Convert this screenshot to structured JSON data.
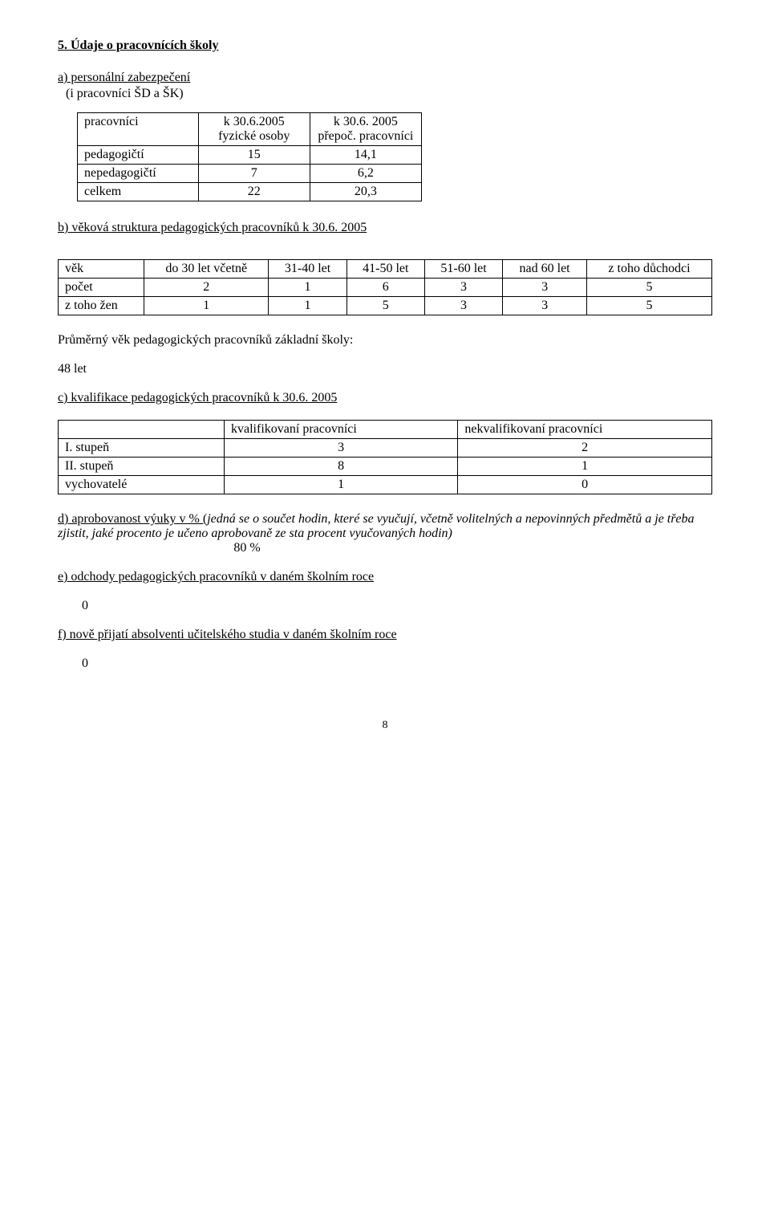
{
  "section5": {
    "heading": "5. Údaje o pracovnících školy",
    "a_line1": "a) personální zabezpečení",
    "a_line2": "(i pracovníci ŠD a ŠK)",
    "table_a": {
      "header": [
        "pracovníci",
        "k 30.6.2005 fyzické osoby",
        "k 30.6. 2005 přepoč. pracovníci"
      ],
      "rows": [
        [
          "pedagogičtí",
          "15",
          "14,1"
        ],
        [
          "nepedagogičtí",
          "7",
          "6,2"
        ],
        [
          "celkem",
          "22",
          "20,3"
        ]
      ]
    },
    "b_heading": "b) věková struktura pedagogických pracovníků k 30.6. 2005",
    "table_b": {
      "header": [
        "věk",
        "do 30 let včetně",
        "31-40 let",
        "41-50 let",
        "51-60 let",
        "nad 60 let",
        "z toho důchodci"
      ],
      "rows": [
        [
          "počet",
          "2",
          "1",
          "6",
          "3",
          "3",
          "5"
        ],
        [
          "z toho žen",
          "1",
          "1",
          "5",
          "3",
          "3",
          "5"
        ]
      ]
    },
    "avg_age_label": "Průměrný věk pedagogických pracovníků základní školy:",
    "avg_age_value": "48 let",
    "c_heading": "c) kvalifikace pedagogických pracovníků  k  30.6. 2005",
    "table_c": {
      "header": [
        "",
        "kvalifikovaní pracovníci",
        "nekvalifikovaní pracovníci"
      ],
      "rows": [
        [
          "I. stupeň",
          "3",
          "2"
        ],
        [
          "II. stupeň",
          "8",
          "1"
        ],
        [
          "vychovatelé",
          "1",
          "0"
        ]
      ]
    },
    "d_underlined": "d) aprobovanost výuky v % (",
    "d_italic": "jedná se o součet hodin, které se vyučují, včetně volitelných a nepovinných  předmětů a je třeba  zjistit, jaké procento je učeno aprobovaně ze sta procent vyučovaných hodin)",
    "d_percent": "80 %",
    "e_heading": "e) odchody pedagogických pracovníků v daném školním roce",
    "e_value": "0",
    "f_heading": "f) nově přijatí absolventi učitelského studia v daném školním roce",
    "f_value": "0",
    "page_number": "8"
  }
}
